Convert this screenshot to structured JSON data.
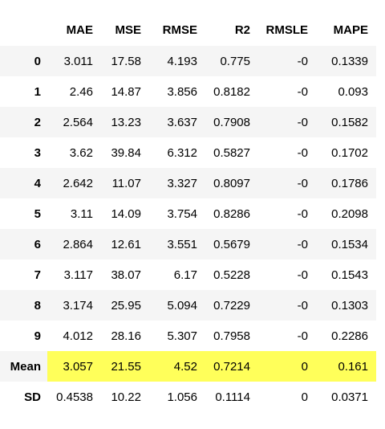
{
  "table": {
    "columns": [
      "",
      "MAE",
      "MSE",
      "RMSE",
      "R2",
      "RMSLE",
      "MAPE"
    ],
    "rows": [
      {
        "index": "0",
        "values": [
          "3.011",
          "17.58",
          "4.193",
          "0.775",
          "-0",
          "0.1339"
        ]
      },
      {
        "index": "1",
        "values": [
          "2.46",
          "14.87",
          "3.856",
          "0.8182",
          "-0",
          "0.093"
        ]
      },
      {
        "index": "2",
        "values": [
          "2.564",
          "13.23",
          "3.637",
          "0.7908",
          "-0",
          "0.1582"
        ]
      },
      {
        "index": "3",
        "values": [
          "3.62",
          "39.84",
          "6.312",
          "0.5827",
          "-0",
          "0.1702"
        ]
      },
      {
        "index": "4",
        "values": [
          "2.642",
          "11.07",
          "3.327",
          "0.8097",
          "-0",
          "0.1786"
        ]
      },
      {
        "index": "5",
        "values": [
          "3.11",
          "14.09",
          "3.754",
          "0.8286",
          "-0",
          "0.2098"
        ]
      },
      {
        "index": "6",
        "values": [
          "2.864",
          "12.61",
          "3.551",
          "0.5679",
          "-0",
          "0.1534"
        ]
      },
      {
        "index": "7",
        "values": [
          "3.117",
          "38.07",
          "6.17",
          "0.5228",
          "-0",
          "0.1543"
        ]
      },
      {
        "index": "8",
        "values": [
          "3.174",
          "25.95",
          "5.094",
          "0.7229",
          "-0",
          "0.1303"
        ]
      },
      {
        "index": "9",
        "values": [
          "4.012",
          "28.16",
          "5.307",
          "0.7958",
          "-0",
          "0.2286"
        ]
      },
      {
        "index": "Mean",
        "values": [
          "3.057",
          "21.55",
          "4.52",
          "0.7214",
          "0",
          "0.161"
        ]
      },
      {
        "index": "SD",
        "values": [
          "0.4538",
          "10.22",
          "1.056",
          "0.1114",
          "0",
          "0.0371"
        ]
      }
    ],
    "highlight_row": "Mean",
    "highlight_color": "#ffff5a",
    "stripe_color": "#f5f5f5"
  }
}
